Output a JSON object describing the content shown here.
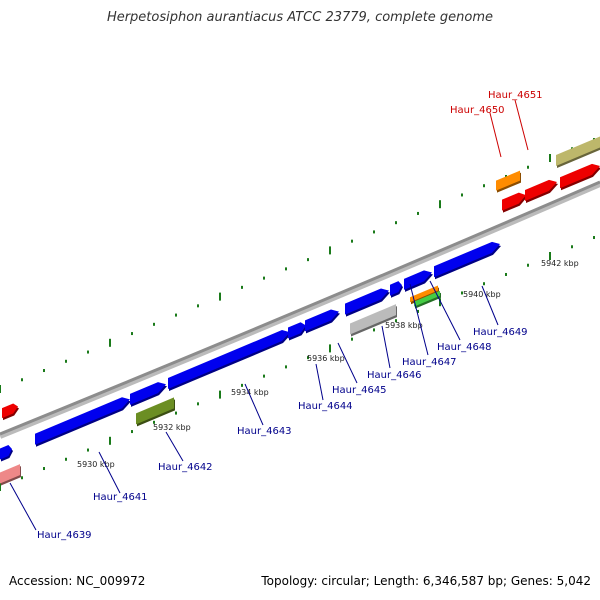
{
  "title": "Herpetosiphon aurantiacus ATCC 23779, complete genome",
  "footer": {
    "accession": "Accession: NC_009972",
    "summary": "Topology: circular; Length: 6,346,587 bp; Genes: 5,042"
  },
  "scale_labels": [
    "5930 kbp",
    "5932 kbp",
    "5934 kbp",
    "5936 kbp",
    "5938 kbp",
    "5940 kbp",
    "5942 kbp"
  ],
  "gene_labels": [
    {
      "name": "Haur_4639",
      "color": "#00008b"
    },
    {
      "name": "Haur_4641",
      "color": "#00008b"
    },
    {
      "name": "Haur_4642",
      "color": "#00008b"
    },
    {
      "name": "Haur_4643",
      "color": "#00008b"
    },
    {
      "name": "Haur_4644",
      "color": "#00008b"
    },
    {
      "name": "Haur_4645",
      "color": "#00008b"
    },
    {
      "name": "Haur_4646",
      "color": "#00008b"
    },
    {
      "name": "Haur_4647",
      "color": "#00008b"
    },
    {
      "name": "Haur_4648",
      "color": "#00008b"
    },
    {
      "name": "Haur_4649",
      "color": "#00008b"
    },
    {
      "name": "Haur_4650",
      "color": "#cc0000"
    },
    {
      "name": "Haur_4651",
      "color": "#cc0000"
    }
  ],
  "colors": {
    "backbone": "#8c8c8c",
    "tick": "#1a7a1a",
    "forward_gene": "#0000ee",
    "reverse_gene": "#ee0000",
    "rna_orange": "#ff8c00",
    "rna_green": "#44cc44",
    "gray_gene": "#bbbbbb",
    "olive_gene": "#6b8e23",
    "pink_gene": "#ee8888",
    "khaki_gene": "#bdb76b"
  }
}
